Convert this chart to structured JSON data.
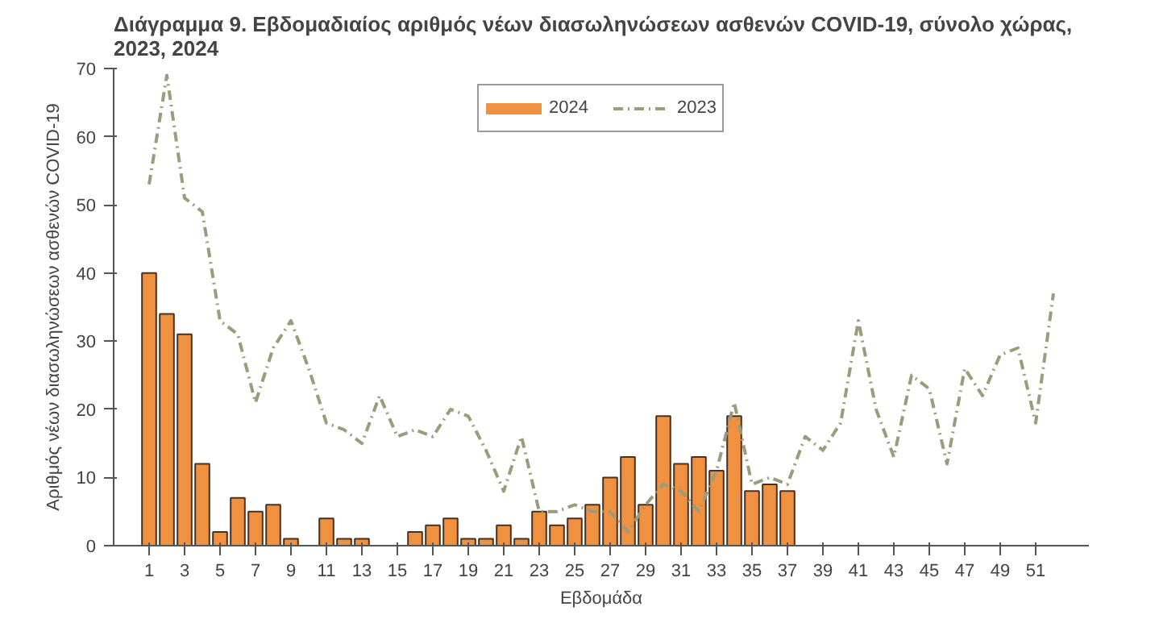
{
  "chart_data": {
    "type": "bar",
    "title": "Διάγραμμα 9. Εβδομαδιαίος αριθμός νέων διασωληνώσεων ασθενών COVID-19, σύνολο χώρας, 2023, 2024",
    "xlabel": "Εβδομάδα",
    "ylabel": "Αριθμός νέων διασωληνώσεων ασθενών COVID-19",
    "xlim": [
      -1,
      54
    ],
    "xticks": [
      1,
      3,
      5,
      7,
      9,
      11,
      13,
      15,
      17,
      19,
      21,
      23,
      25,
      27,
      29,
      31,
      33,
      35,
      37,
      39,
      41,
      43,
      45,
      47,
      49,
      51
    ],
    "ylim": [
      0,
      70
    ],
    "yticks": [
      0,
      10,
      20,
      30,
      40,
      50,
      60,
      70
    ],
    "grid": false,
    "legend": "top",
    "series": [
      {
        "name": "2024",
        "color": "#f0913f",
        "x": [
          1,
          2,
          3,
          4,
          5,
          6,
          7,
          8,
          9,
          10,
          11,
          12,
          13,
          14,
          15,
          16,
          17,
          18,
          19,
          20,
          21,
          22,
          23,
          24,
          25,
          26,
          27,
          28,
          29,
          30,
          31,
          32,
          33,
          34,
          35,
          36,
          37
        ],
        "values": [
          40,
          34,
          31,
          12,
          2,
          7,
          5,
          6,
          1,
          null,
          4,
          1,
          1,
          null,
          null,
          2,
          3,
          4,
          1,
          1,
          3,
          1,
          5,
          3,
          4,
          6,
          10,
          13,
          6,
          19,
          12,
          13,
          11,
          19,
          8,
          9,
          8
        ]
      },
      {
        "name": "2023",
        "type": "line",
        "color": "#9c9c7c",
        "line_style": "dashed",
        "x": [
          1,
          2,
          3,
          4,
          5,
          6,
          7,
          8,
          9,
          10,
          11,
          12,
          13,
          14,
          15,
          16,
          17,
          18,
          19,
          20,
          21,
          22,
          23,
          24,
          25,
          26,
          27,
          28,
          29,
          30,
          31,
          32,
          33,
          34,
          35,
          36,
          37,
          38,
          39,
          40,
          41,
          42,
          43,
          44,
          45,
          46,
          47,
          48,
          49,
          50,
          51,
          52
        ],
        "values": [
          53,
          69,
          51,
          49,
          33,
          31,
          21,
          29,
          33,
          26,
          18,
          17,
          15,
          22,
          16,
          17,
          16,
          20,
          19,
          14,
          8,
          16,
          5,
          5,
          6,
          5,
          5,
          2,
          6,
          9,
          8,
          5,
          11,
          21,
          9,
          10,
          9,
          16,
          14,
          18,
          33,
          20,
          13,
          25,
          23,
          12,
          26,
          22,
          28,
          29,
          18,
          37
        ]
      }
    ]
  }
}
